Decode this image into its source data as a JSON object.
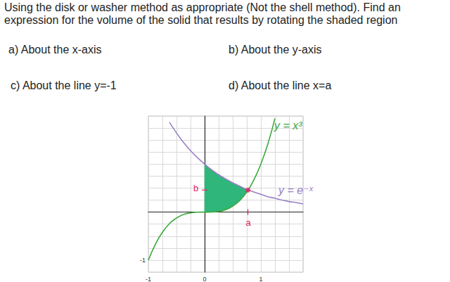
{
  "document": {
    "instructions": [
      "Using the disk or washer method as appropriate (Not the shell method). Find an",
      "expression for the volume of the solid that results by rotating the shaded region"
    ],
    "parts": [
      "a) About the x-axis",
      "b) About the y-axis",
      "c) About the line y=-1",
      "d) About the line x=a"
    ]
  },
  "chart_data": {
    "type": "line",
    "xlim": [
      -1,
      1.75
    ],
    "ylim": [
      -1.25,
      2
    ],
    "xticks": [
      -1,
      0,
      1
    ],
    "yticks": [
      -1
    ],
    "grid": true,
    "series": [
      {
        "name": "y = x³",
        "color": "#3da83d",
        "x": [
          -1,
          -0.875,
          -0.75,
          -0.625,
          -0.5,
          -0.375,
          -0.25,
          -0.125,
          0,
          0.125,
          0.25,
          0.375,
          0.5,
          0.625,
          0.75,
          0.875,
          1,
          1.125,
          1.25
        ],
        "values": [
          -1,
          -0.67,
          -0.42,
          -0.24,
          -0.125,
          -0.05,
          -0.016,
          -0.002,
          0,
          0.002,
          0.016,
          0.05,
          0.125,
          0.24,
          0.42,
          0.67,
          1,
          1.42,
          1.95
        ]
      },
      {
        "name": "y = e⁻ˣ",
        "color": "#9a80c4",
        "x": [
          -0.625,
          -0.5,
          -0.375,
          -0.25,
          -0.125,
          0,
          0.125,
          0.25,
          0.375,
          0.5,
          0.625,
          0.75,
          0.875,
          1,
          1.125,
          1.25,
          1.375,
          1.5,
          1.625,
          1.75
        ],
        "values": [
          1.87,
          1.65,
          1.45,
          1.28,
          1.13,
          1,
          0.88,
          0.78,
          0.69,
          0.61,
          0.54,
          0.47,
          0.42,
          0.37,
          0.32,
          0.29,
          0.25,
          0.22,
          0.2,
          0.17
        ]
      }
    ],
    "shaded_region": {
      "color": "#2fb67a",
      "x": [
        0,
        0.125,
        0.25,
        0.375,
        0.5,
        0.625,
        0.75,
        0.77
      ],
      "lower": [
        0,
        0.002,
        0.016,
        0.05,
        0.125,
        0.24,
        0.42,
        0.46
      ],
      "upper": [
        1,
        0.88,
        0.78,
        0.69,
        0.61,
        0.54,
        0.47,
        0.46
      ]
    },
    "intersection": {
      "x": 0.77,
      "y": 0.46,
      "color": "#e0245e"
    },
    "annotations": [
      {
        "text": "a",
        "x": 0.77,
        "color": "#e0245e"
      },
      {
        "text": "b",
        "y": 0.46,
        "color": "#e0245e"
      }
    ]
  }
}
